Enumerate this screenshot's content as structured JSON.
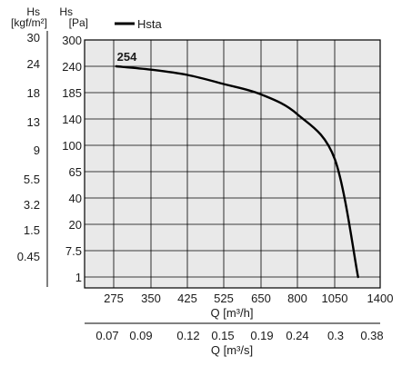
{
  "chart_data": {
    "type": "line",
    "y_axes": {
      "left": {
        "label": "Hs",
        "unit": "[kgf/m²]",
        "ticks": [
          "30",
          "24",
          "18",
          "13",
          "9",
          "5.5",
          "3.2",
          "1.5",
          "0.45"
        ]
      },
      "right": {
        "label": "Hs",
        "unit": "[Pa]",
        "ticks": [
          "300",
          "240",
          "185",
          "140",
          "100",
          "65",
          "40",
          "20",
          "7.5",
          "1"
        ]
      }
    },
    "x_axes": {
      "primary": {
        "label": "Q [m³/h]",
        "ticks": [
          "275",
          "350",
          "425",
          "525",
          "650",
          "800",
          "1050",
          "1400"
        ]
      },
      "secondary": {
        "label": "Q [m³/s]",
        "ticks": [
          "0.07",
          "0.09",
          "0.12",
          "0.15",
          "0.19",
          "0.24",
          "0.3",
          "0.38"
        ]
      }
    },
    "grid": true,
    "legend": {
      "position": "top-left",
      "entries": [
        "Hsta"
      ]
    },
    "series": [
      {
        "name": "Hsta",
        "color": "#000000",
        "points": [
          {
            "x": 280,
            "y": 240
          },
          {
            "x": 350,
            "y": 233
          },
          {
            "x": 425,
            "y": 222
          },
          {
            "x": 525,
            "y": 203
          },
          {
            "x": 650,
            "y": 182
          },
          {
            "x": 800,
            "y": 148
          },
          {
            "x": 1050,
            "y": 82
          },
          {
            "x": 1230,
            "y": 1
          }
        ]
      }
    ],
    "annotations": [
      {
        "text": "254",
        "x": 300,
        "y": 265
      }
    ]
  }
}
